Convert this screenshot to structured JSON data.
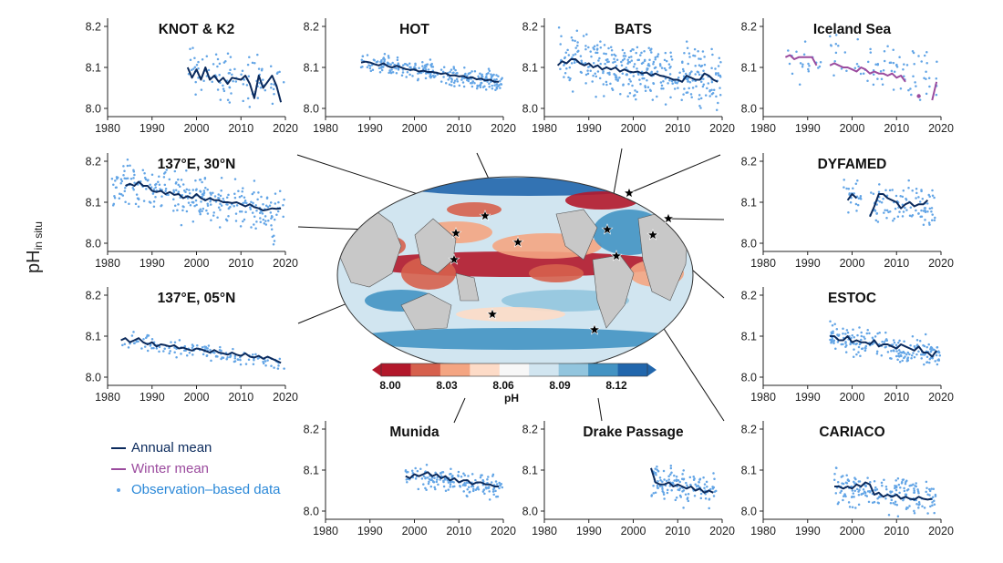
{
  "figure": {
    "ylabel_main": "pH",
    "ylabel_sub": "in situ",
    "colors": {
      "annual": "#0b2a5c",
      "winter": "#9b4b9e",
      "obs": "#63a5e6",
      "star": "#000000",
      "land": "#c8c8c8"
    },
    "colorbar": {
      "ticks": [
        "8.00",
        "8.03",
        "8.06",
        "8.09",
        "8.12"
      ],
      "label": "pH",
      "colors": [
        "#b2182b",
        "#d6604d",
        "#f4a582",
        "#fddbc7",
        "#f7f7f7",
        "#d1e5f0",
        "#92c5de",
        "#4393c3",
        "#2166ac"
      ]
    }
  },
  "legend": {
    "items": [
      {
        "label": "Annual mean",
        "kind": "line",
        "color": "#0b2a5c"
      },
      {
        "label": "Winter mean",
        "kind": "line",
        "color": "#9b4b9e"
      },
      {
        "label": "Observation–based data",
        "kind": "dot",
        "color": "#63a5e6"
      }
    ]
  },
  "chart_data": [
    {
      "type": "line",
      "title": "KNOT & K2",
      "xlim": [
        1980,
        2020
      ],
      "ylim": [
        7.98,
        8.22
      ],
      "xticks": [
        1980,
        1990,
        2000,
        2010,
        2020
      ],
      "yticks": [
        "8.0",
        "8.1",
        "8.2"
      ],
      "series": [
        {
          "name": "Annual mean",
          "x": [
            1998,
            1999,
            2000,
            2001,
            2002,
            2003,
            2004,
            2005,
            2006,
            2007,
            2008,
            2010,
            2011,
            2012,
            2013,
            2014,
            2015,
            2016,
            2017,
            2018,
            2019
          ],
          "y": [
            8.1,
            8.075,
            8.095,
            8.07,
            8.1,
            8.07,
            8.08,
            8.065,
            8.075,
            8.06,
            8.075,
            8.07,
            8.08,
            8.06,
            8.025,
            8.08,
            8.05,
            8.065,
            8.08,
            8.055,
            8.015
          ]
        }
      ],
      "obs": {
        "x0": 1998,
        "x1": 2019,
        "y0": 8.09,
        "y1": 8.065,
        "spread": 0.045,
        "n": 110,
        "skip": [
          2009
        ]
      }
    },
    {
      "type": "line",
      "title": "HOT",
      "xlim": [
        1980,
        2020
      ],
      "ylim": [
        7.98,
        8.22
      ],
      "xticks": [
        1980,
        1990,
        2000,
        2010,
        2020
      ],
      "yticks": [
        "8.0",
        "8.1",
        "8.2"
      ],
      "series": [
        {
          "name": "Annual mean",
          "x": [
            1988,
            1989,
            1990,
            1991,
            1992,
            1993,
            1994,
            1995,
            1996,
            1997,
            1998,
            1999,
            2000,
            2001,
            2002,
            2003,
            2004,
            2005,
            2006,
            2007,
            2008,
            2009,
            2010,
            2011,
            2012,
            2013,
            2014,
            2015,
            2016,
            2017,
            2018,
            2019
          ],
          "y": [
            8.112,
            8.114,
            8.112,
            8.108,
            8.105,
            8.11,
            8.103,
            8.1,
            8.104,
            8.1,
            8.096,
            8.094,
            8.095,
            8.09,
            8.092,
            8.089,
            8.089,
            8.087,
            8.084,
            8.086,
            8.08,
            8.081,
            8.078,
            8.079,
            8.074,
            8.076,
            8.071,
            8.073,
            8.068,
            8.07,
            8.065,
            8.065
          ]
        }
      ],
      "obs": {
        "x0": 1988,
        "x1": 2019,
        "y0": 8.115,
        "y1": 8.064,
        "spread": 0.018,
        "n": 260,
        "skip": []
      }
    },
    {
      "type": "line",
      "title": "BATS",
      "xlim": [
        1980,
        2020
      ],
      "ylim": [
        7.98,
        8.22
      ],
      "xticks": [
        1980,
        1990,
        2000,
        2010,
        2020
      ],
      "yticks": [
        "8.0",
        "8.1",
        "8.2"
      ],
      "series": [
        {
          "name": "Annual mean",
          "x": [
            1983,
            1984,
            1985,
            1986,
            1987,
            1988,
            1989,
            1990,
            1991,
            1992,
            1993,
            1994,
            1995,
            1996,
            1997,
            1998,
            1999,
            2000,
            2001,
            2002,
            2003,
            2004,
            2005,
            2006,
            2007,
            2008,
            2009,
            2010,
            2011,
            2012,
            2013,
            2014,
            2015,
            2016,
            2017,
            2018,
            2019
          ],
          "y": [
            8.105,
            8.115,
            8.11,
            8.12,
            8.12,
            8.11,
            8.105,
            8.11,
            8.1,
            8.105,
            8.095,
            8.1,
            8.095,
            8.1,
            8.09,
            8.095,
            8.09,
            8.088,
            8.09,
            8.085,
            8.088,
            8.08,
            8.085,
            8.08,
            8.078,
            8.075,
            8.07,
            8.07,
            8.065,
            8.08,
            8.075,
            8.07,
            8.07,
            8.085,
            8.08,
            8.07,
            8.065
          ]
        }
      ],
      "obs": {
        "x0": 1983,
        "x1": 2019,
        "y0": 8.12,
        "y1": 8.07,
        "spread": 0.05,
        "n": 360,
        "skip": []
      }
    },
    {
      "type": "line",
      "title": "Iceland Sea",
      "xlim": [
        1980,
        2020
      ],
      "ylim": [
        7.98,
        8.22
      ],
      "xticks": [
        1980,
        1990,
        2000,
        2010,
        2020
      ],
      "yticks": [
        "8.0",
        "8.1",
        "8.2"
      ],
      "series": [
        {
          "name": "Winter mean",
          "color": "winter",
          "segments": [
            {
              "x": [
                1985,
                1986,
                1987,
                1988,
                1989,
                1990,
                1991,
                1992
              ],
              "y": [
                8.125,
                8.13,
                8.12,
                8.125,
                8.125,
                8.125,
                8.125,
                8.105
              ]
            },
            {
              "x": [
                1995,
                1996,
                1997,
                1998,
                1999,
                2000,
                2001,
                2002,
                2003,
                2004,
                2005,
                2006,
                2007,
                2008,
                2009,
                2010,
                2011,
                2012
              ],
              "y": [
                8.105,
                8.11,
                8.105,
                8.1,
                8.1,
                8.095,
                8.09,
                8.1,
                8.095,
                8.085,
                8.09,
                8.085,
                8.085,
                8.08,
                8.085,
                8.075,
                8.08,
                8.065
              ]
            },
            {
              "x": [
                2015
              ],
              "y": [
                8.03
              ]
            },
            {
              "x": [
                2018,
                2019
              ],
              "y": [
                8.02,
                8.065
              ]
            }
          ]
        }
      ],
      "obs": {
        "x0": 1985,
        "x1": 2019,
        "y0": 8.13,
        "y1": 8.08,
        "spread": 0.045,
        "n": 110,
        "skip": [
          1993,
          1994
        ]
      }
    },
    {
      "type": "line",
      "title": "137°E, 30°N",
      "xlim": [
        1980,
        2020
      ],
      "ylim": [
        7.98,
        8.22
      ],
      "xticks": [
        1980,
        1990,
        2000,
        2010,
        2020
      ],
      "yticks": [
        "8.0",
        "8.1",
        "8.2"
      ],
      "series": [
        {
          "name": "Annual mean",
          "x": [
            1984,
            1985,
            1986,
            1987,
            1988,
            1989,
            1990,
            1991,
            1992,
            1993,
            1994,
            1995,
            1996,
            1997,
            1998,
            1999,
            2000,
            2001,
            2002,
            2003,
            2004,
            2005,
            2006,
            2007,
            2008,
            2009,
            2010,
            2011,
            2012,
            2013,
            2014,
            2015,
            2016,
            2017,
            2018,
            2019
          ],
          "y": [
            8.14,
            8.145,
            8.14,
            8.15,
            8.14,
            8.14,
            8.128,
            8.125,
            8.128,
            8.12,
            8.125,
            8.118,
            8.12,
            8.11,
            8.115,
            8.11,
            8.12,
            8.11,
            8.105,
            8.11,
            8.105,
            8.105,
            8.1,
            8.1,
            8.098,
            8.1,
            8.095,
            8.09,
            8.095,
            8.088,
            8.085,
            8.08,
            8.082,
            8.085,
            8.084,
            8.085
          ]
        }
      ],
      "obs": {
        "x0": 1981,
        "x1": 2019,
        "y0": 8.15,
        "y1": 8.07,
        "spread": 0.045,
        "n": 300,
        "skip": []
      }
    },
    {
      "type": "line",
      "title": "DYFAMED",
      "xlim": [
        1980,
        2020
      ],
      "ylim": [
        7.98,
        8.22
      ],
      "xticks": [
        1980,
        1990,
        2000,
        2010,
        2020
      ],
      "yticks": [
        "8.0",
        "8.1",
        "8.2"
      ],
      "series": [
        {
          "name": "Annual mean",
          "segments": [
            {
              "x": [
                1999,
                2000,
                2001
              ],
              "y": [
                8.105,
                8.12,
                8.11
              ]
            },
            {
              "x": [
                2004,
                2005,
                2006,
                2007,
                2008,
                2009,
                2010,
                2011,
                2012,
                2013,
                2014,
                2015,
                2016,
                2017
              ],
              "y": [
                8.065,
                8.09,
                8.12,
                8.12,
                8.11,
                8.105,
                8.1,
                8.085,
                8.095,
                8.1,
                8.09,
                8.095,
                8.095,
                8.105
              ]
            }
          ]
        }
      ],
      "obs": {
        "x0": 1998,
        "x1": 2018,
        "y0": 8.11,
        "y1": 8.09,
        "spread": 0.035,
        "n": 130,
        "skip": [
          2002,
          2003
        ]
      }
    },
    {
      "type": "line",
      "title": "137°E, 05°N",
      "xlim": [
        1980,
        2020
      ],
      "ylim": [
        7.98,
        8.22
      ],
      "xticks": [
        1980,
        1990,
        2000,
        2010,
        2020
      ],
      "yticks": [
        "8.0",
        "8.1",
        "8.2"
      ],
      "series": [
        {
          "name": "Annual mean",
          "x": [
            1983,
            1984,
            1985,
            1986,
            1987,
            1988,
            1989,
            1990,
            1991,
            1992,
            1993,
            1994,
            1995,
            1996,
            1997,
            1998,
            1999,
            2000,
            2001,
            2002,
            2003,
            2004,
            2005,
            2006,
            2007,
            2008,
            2009,
            2010,
            2011,
            2012,
            2013,
            2014,
            2015,
            2016,
            2017,
            2018,
            2019
          ],
          "y": [
            8.09,
            8.095,
            8.085,
            8.09,
            8.095,
            8.085,
            8.08,
            8.085,
            8.075,
            8.08,
            8.078,
            8.075,
            8.078,
            8.07,
            8.072,
            8.068,
            8.065,
            8.07,
            8.068,
            8.064,
            8.06,
            8.066,
            8.06,
            8.058,
            8.055,
            8.06,
            8.055,
            8.052,
            8.058,
            8.05,
            8.048,
            8.052,
            8.045,
            8.05,
            8.045,
            8.04,
            8.035
          ]
        }
      ],
      "obs": {
        "x0": 1983,
        "x1": 2019,
        "y0": 8.09,
        "y1": 8.035,
        "spread": 0.014,
        "n": 140,
        "skip": []
      }
    },
    {
      "type": "line",
      "title": "ESTOC",
      "xlim": [
        1980,
        2020
      ],
      "ylim": [
        7.98,
        8.22
      ],
      "xticks": [
        1980,
        1990,
        2000,
        2010,
        2020
      ],
      "yticks": [
        "8.0",
        "8.1",
        "8.2"
      ],
      "series": [
        {
          "name": "Annual mean",
          "x": [
            1995,
            1996,
            1997,
            1998,
            1999,
            2000,
            2001,
            2002,
            2003,
            2004,
            2005,
            2006,
            2007,
            2008,
            2009,
            2010,
            2011,
            2012,
            2013,
            2014,
            2015,
            2016,
            2017,
            2018,
            2019
          ],
          "y": [
            8.1,
            8.1,
            8.09,
            8.09,
            8.1,
            8.085,
            8.09,
            8.085,
            8.085,
            8.08,
            8.09,
            8.075,
            8.08,
            8.08,
            8.075,
            8.07,
            8.08,
            8.075,
            8.07,
            8.065,
            8.075,
            8.06,
            8.06,
            8.05,
            8.065
          ]
        }
      ],
      "obs": {
        "x0": 1995,
        "x1": 2019,
        "y0": 8.1,
        "y1": 8.055,
        "spread": 0.025,
        "n": 200,
        "skip": []
      }
    },
    {
      "type": "line",
      "title": "Munida",
      "xlim": [
        1980,
        2020
      ],
      "ylim": [
        7.98,
        8.22
      ],
      "xticks": [
        1980,
        1990,
        2000,
        2010,
        2020
      ],
      "yticks": [
        "8.0",
        "8.1",
        "8.2"
      ],
      "series": [
        {
          "name": "Annual mean",
          "x": [
            1998,
            1999,
            2000,
            2001,
            2002,
            2003,
            2004,
            2005,
            2006,
            2007,
            2008,
            2009,
            2010,
            2011,
            2012,
            2013,
            2014,
            2015,
            2016,
            2017,
            2018,
            2019
          ],
          "y": [
            8.085,
            8.08,
            8.09,
            8.085,
            8.09,
            8.095,
            8.085,
            8.09,
            8.08,
            8.085,
            8.075,
            8.08,
            8.07,
            8.075,
            8.075,
            8.065,
            8.07,
            8.07,
            8.065,
            8.065,
            8.06,
            8.06
          ]
        }
      ],
      "obs": {
        "x0": 1998,
        "x1": 2019,
        "y0": 8.09,
        "y1": 8.058,
        "spread": 0.02,
        "n": 170,
        "skip": []
      }
    },
    {
      "type": "line",
      "title": "Drake Passage",
      "xlim": [
        1980,
        2020
      ],
      "ylim": [
        7.98,
        8.22
      ],
      "xticks": [
        1980,
        1990,
        2000,
        2010,
        2020
      ],
      "yticks": [
        "8.0",
        "8.1",
        "8.2"
      ],
      "series": [
        {
          "name": "Annual mean",
          "x": [
            2004,
            2005,
            2006,
            2007,
            2008,
            2009,
            2010,
            2011,
            2012,
            2013,
            2014,
            2015,
            2016,
            2017,
            2018
          ],
          "y": [
            8.105,
            8.07,
            8.065,
            8.065,
            8.07,
            8.06,
            8.065,
            8.06,
            8.055,
            8.06,
            8.05,
            8.055,
            8.045,
            8.05,
            8.045
          ]
        }
      ],
      "obs": {
        "x0": 2004,
        "x1": 2018,
        "y0": 8.07,
        "y1": 8.05,
        "spread": 0.03,
        "n": 130,
        "skip": []
      }
    },
    {
      "type": "line",
      "title": "CARIACO",
      "xlim": [
        1980,
        2020
      ],
      "ylim": [
        7.98,
        8.22
      ],
      "xticks": [
        1980,
        1990,
        2000,
        2010,
        2020
      ],
      "yticks": [
        "8.0",
        "8.1",
        "8.2"
      ],
      "series": [
        {
          "name": "Annual mean",
          "x": [
            1996,
            1997,
            1998,
            1999,
            2000,
            2001,
            2002,
            2003,
            2004,
            2005,
            2006,
            2007,
            2008,
            2009,
            2010,
            2011,
            2012,
            2013,
            2014,
            2015,
            2016,
            2017,
            2018
          ],
          "y": [
            8.06,
            8.06,
            8.055,
            8.06,
            8.055,
            8.065,
            8.06,
            8.07,
            8.065,
            8.04,
            8.045,
            8.035,
            8.04,
            8.035,
            8.04,
            8.03,
            8.035,
            8.03,
            8.028,
            8.035,
            8.03,
            8.028,
            8.03
          ]
        }
      ],
      "obs": {
        "x0": 1996,
        "x1": 2018,
        "y0": 8.06,
        "y1": 8.03,
        "spread": 0.03,
        "n": 200,
        "skip": []
      }
    }
  ]
}
